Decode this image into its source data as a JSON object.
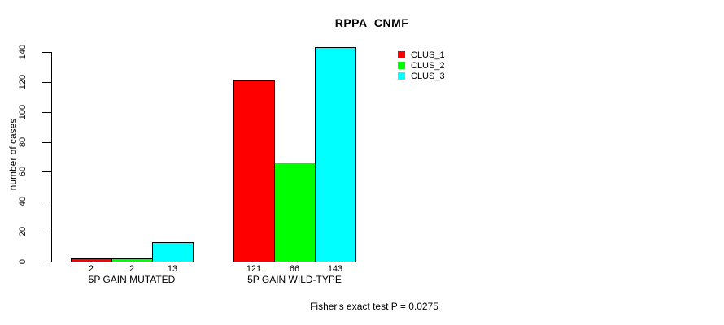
{
  "chart_data": {
    "type": "bar",
    "title": "RPPA_CNMF",
    "ylabel": "number of cases",
    "xlabel": "",
    "categories": [
      "5P GAIN MUTATED",
      "5P GAIN WILD-TYPE"
    ],
    "series": [
      {
        "name": "CLUS_1",
        "color": "#ff0000",
        "values": [
          2,
          121
        ]
      },
      {
        "name": "CLUS_2",
        "color": "#00ff00",
        "values": [
          2,
          66
        ]
      },
      {
        "name": "CLUS_3",
        "color": "#00ffff",
        "values": [
          13,
          143
        ]
      }
    ],
    "bar_value_labels": [
      [
        "2",
        "2",
        "13"
      ],
      [
        "121",
        "66",
        "143"
      ]
    ],
    "yticks": [
      0,
      20,
      40,
      60,
      80,
      100,
      120,
      140
    ],
    "ylim": [
      0,
      140
    ],
    "grid": false,
    "legend_position": "top-right",
    "annotation": "Fisher's exact test P = 0.0275",
    "background": "#ffffff",
    "bar_border_color": "#000000"
  }
}
